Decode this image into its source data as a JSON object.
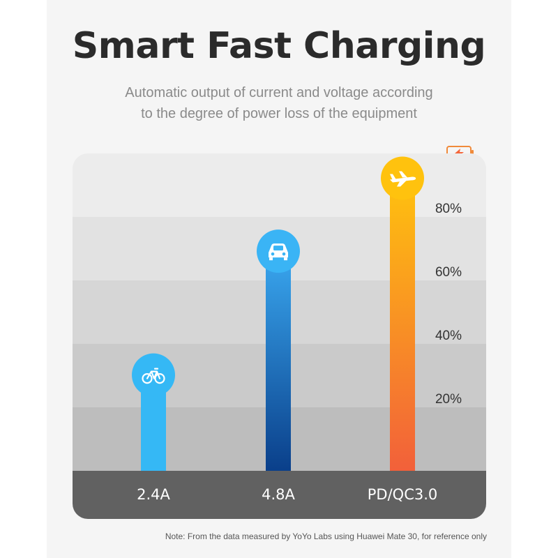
{
  "title": "Smart Fast Charging",
  "subtitle_lines": [
    "Automatic output of current and voltage according",
    "to the degree of power loss of the equipment"
  ],
  "note": "Note: From the data measured by YoYo Labs using Huawei Mate 30, for reference only",
  "chart_data": {
    "type": "bar",
    "categories": [
      "2.4A",
      "4.8A",
      "PD/QC3.0"
    ],
    "values": [
      28,
      67,
      90
    ],
    "yticks": [
      "20%",
      "40%",
      "60%",
      "80%"
    ],
    "ylim": [
      0,
      100
    ],
    "grid": true,
    "icons": [
      "bicycle-icon",
      "car-icon",
      "airplane-icon"
    ],
    "colors": {
      "bar1": "#35b8f5",
      "bar2_top": "#3aa8f0",
      "bar2_bottom": "#0a3f8a",
      "bar3_top": "#ffc20e",
      "bar3_bottom": "#f2603a",
      "base": "#616161"
    }
  },
  "header_icon": "battery-charging-icon"
}
